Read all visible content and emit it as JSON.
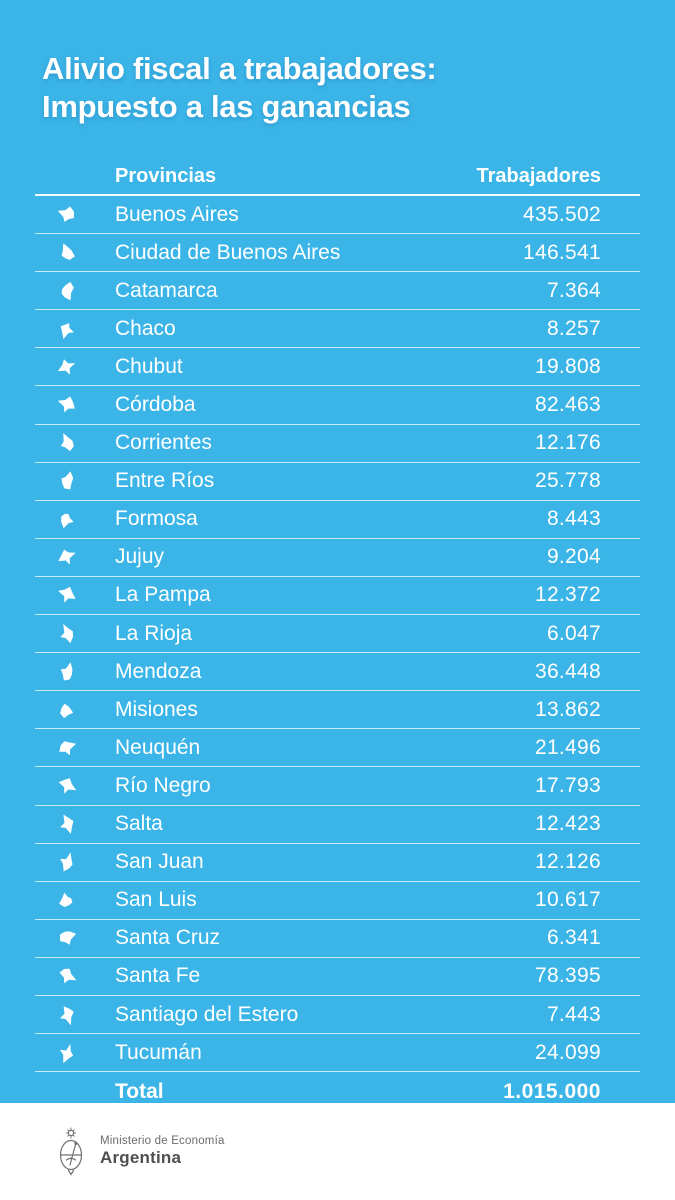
{
  "colors": {
    "background": "#3bb5e8",
    "card_text": "#ffffff",
    "separator": "rgba(255,255,255,0.72)",
    "footer_background": "#ffffff",
    "footer_ministry_text": "#6a6a6a",
    "footer_country_text": "#4f4f4f"
  },
  "title": {
    "line1": "Alivio fiscal a trabajadores:",
    "line2": "Impuesto a las ganancias"
  },
  "table": {
    "header": {
      "provinces": "Provincias",
      "workers": "Trabajadores"
    },
    "rows": [
      {
        "icon": "buenos-aires-map-icon",
        "province": "Buenos Aires",
        "workers": "435.502"
      },
      {
        "icon": "ciudad-de-buenos-aires-map-icon",
        "province": "Ciudad de Buenos Aires",
        "workers": "146.541"
      },
      {
        "icon": "catamarca-map-icon",
        "province": "Catamarca",
        "workers": "7.364"
      },
      {
        "icon": "chaco-map-icon",
        "province": "Chaco",
        "workers": "8.257"
      },
      {
        "icon": "chubut-map-icon",
        "province": "Chubut",
        "workers": "19.808"
      },
      {
        "icon": "cordoba-map-icon",
        "province": "Córdoba",
        "workers": "82.463"
      },
      {
        "icon": "corrientes-map-icon",
        "province": "Corrientes",
        "workers": "12.176"
      },
      {
        "icon": "entre-rios-map-icon",
        "province": "Entre Ríos",
        "workers": "25.778"
      },
      {
        "icon": "formosa-map-icon",
        "province": "Formosa",
        "workers": "8.443"
      },
      {
        "icon": "jujuy-map-icon",
        "province": "Jujuy",
        "workers": "9.204"
      },
      {
        "icon": "la-pampa-map-icon",
        "province": "La Pampa",
        "workers": "12.372"
      },
      {
        "icon": "la-rioja-map-icon",
        "province": "La Rioja",
        "workers": "6.047"
      },
      {
        "icon": "mendoza-map-icon",
        "province": "Mendoza",
        "workers": "36.448"
      },
      {
        "icon": "misiones-map-icon",
        "province": "Misiones",
        "workers": "13.862"
      },
      {
        "icon": "neuquen-map-icon",
        "province": "Neuquén",
        "workers": "21.496"
      },
      {
        "icon": "rio-negro-map-icon",
        "province": "Río Negro",
        "workers": "17.793"
      },
      {
        "icon": "salta-map-icon",
        "province": "Salta",
        "workers": "12.423"
      },
      {
        "icon": "san-juan-map-icon",
        "province": "San Juan",
        "workers": "12.126"
      },
      {
        "icon": "san-luis-map-icon",
        "province": "San Luis",
        "workers": "10.617"
      },
      {
        "icon": "santa-cruz-map-icon",
        "province": "Santa Cruz",
        "workers": "6.341"
      },
      {
        "icon": "santa-fe-map-icon",
        "province": "Santa Fe",
        "workers": "78.395"
      },
      {
        "icon": "santiago-del-estero-map-icon",
        "province": "Santiago del Estero",
        "workers": "7.443"
      },
      {
        "icon": "tucuman-map-icon",
        "province": "Tucumán",
        "workers": "24.099"
      }
    ],
    "total": {
      "label": "Total",
      "value": "1.015.000"
    }
  },
  "footer": {
    "ministry": "Ministerio de Economía",
    "country": "Argentina",
    "emblem": "argentina-coat-of-arms-icon"
  },
  "chart_data": {
    "type": "table",
    "title": "Alivio fiscal a trabajadores: Impuesto a las ganancias",
    "columns": [
      "Provincias",
      "Trabajadores"
    ],
    "categories": [
      "Buenos Aires",
      "Ciudad de Buenos Aires",
      "Catamarca",
      "Chaco",
      "Chubut",
      "Córdoba",
      "Corrientes",
      "Entre Ríos",
      "Formosa",
      "Jujuy",
      "La Pampa",
      "La Rioja",
      "Mendoza",
      "Misiones",
      "Neuquén",
      "Río Negro",
      "Salta",
      "San Juan",
      "San Luis",
      "Santa Cruz",
      "Santa Fe",
      "Santiago del Estero",
      "Tucumán"
    ],
    "values": [
      435502,
      146541,
      7364,
      8257,
      19808,
      82463,
      12176,
      25778,
      8443,
      9204,
      12372,
      6047,
      36448,
      13862,
      21496,
      17793,
      12423,
      12126,
      10617,
      6341,
      78395,
      7443,
      24099
    ],
    "total": 1015000
  }
}
